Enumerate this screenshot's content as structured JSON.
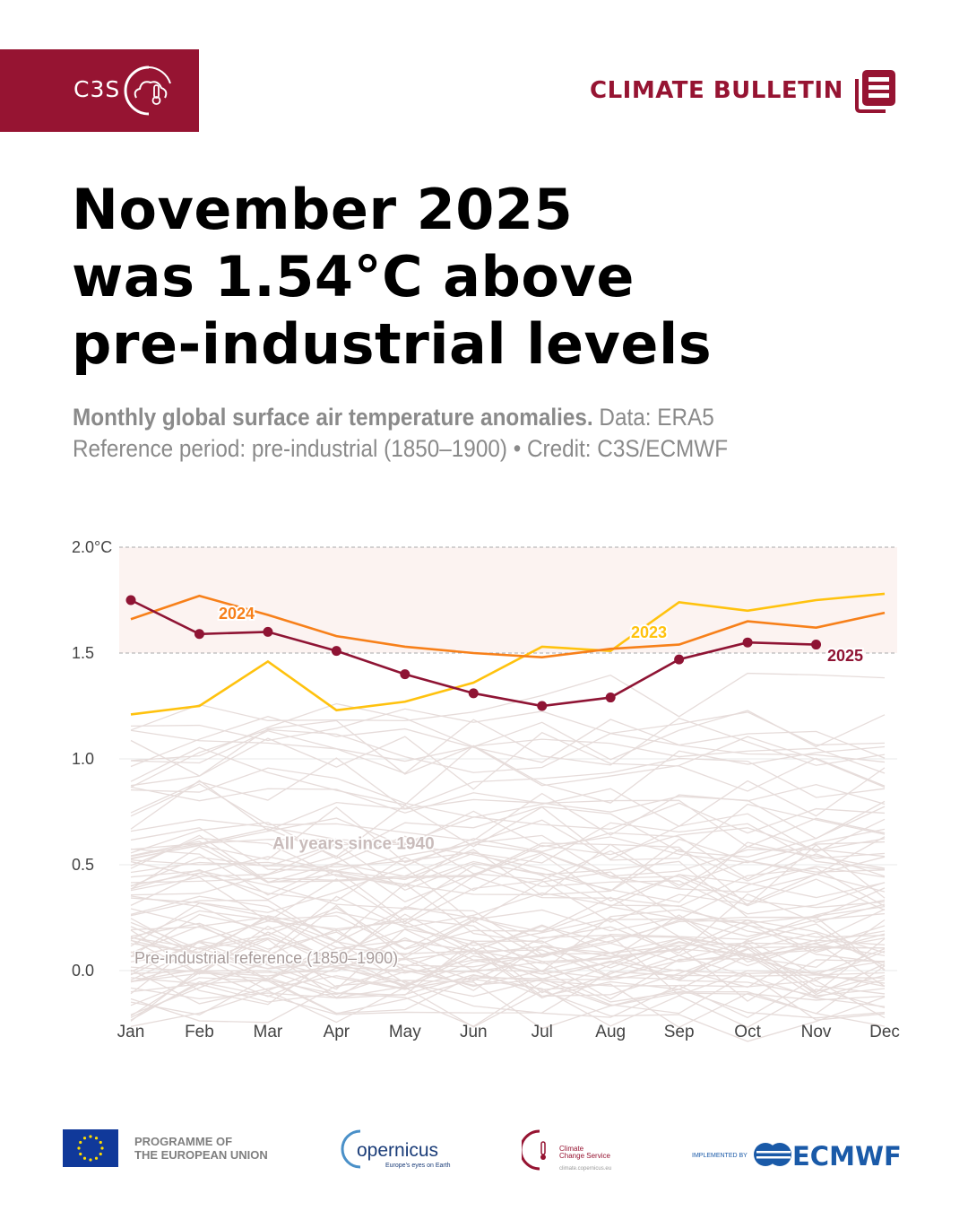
{
  "header": {
    "brand": "C3S",
    "bulletin_label": "CLIMATE BULLETIN",
    "colors": {
      "brand": "#961432"
    }
  },
  "title": {
    "line1": "November 2025",
    "line2": "was 1.54°C above",
    "line3": "pre-industrial levels"
  },
  "subtitle": {
    "bold": "Monthly global surface air temperature anomalies.",
    "data_source": " Data: ERA5",
    "line2": "Reference period: pre-industrial (1850–1900) • Credit: C3S/ECMWF"
  },
  "chart_data": {
    "type": "line",
    "categories": [
      "Jan",
      "Feb",
      "Mar",
      "Apr",
      "May",
      "Jun",
      "Jul",
      "Aug",
      "Sep",
      "Oct",
      "Nov",
      "Dec"
    ],
    "ylim": [
      -0.2,
      2.0
    ],
    "yticks": [
      {
        "value": 2.0,
        "label": "2.0°C"
      },
      {
        "value": 1.5,
        "label": "1.5"
      },
      {
        "value": 1.0,
        "label": "1.0"
      },
      {
        "value": 0.5,
        "label": "0.5"
      },
      {
        "value": 0.0,
        "label": "0.0"
      }
    ],
    "shaded_band": [
      1.5,
      2.0
    ],
    "background_label": "All years since 1940",
    "reference_label": "Pre-industrial reference (1850–1900)",
    "grid": true,
    "series": [
      {
        "name": "2023",
        "color": "#ffc20e",
        "markers": false,
        "values": [
          1.21,
          1.25,
          1.46,
          1.23,
          1.27,
          1.36,
          1.53,
          1.51,
          1.74,
          1.7,
          1.75,
          1.78
        ]
      },
      {
        "name": "2024",
        "color": "#f7801a",
        "markers": false,
        "values": [
          1.66,
          1.77,
          1.68,
          1.58,
          1.53,
          1.5,
          1.48,
          1.52,
          1.54,
          1.65,
          1.62,
          1.69
        ]
      },
      {
        "name": "2025",
        "color": "#8f1434",
        "markers": true,
        "values": [
          1.75,
          1.59,
          1.6,
          1.51,
          1.4,
          1.31,
          1.25,
          1.29,
          1.47,
          1.55,
          1.54,
          null
        ]
      }
    ],
    "background_series_color": "#e6dcda"
  },
  "footer": {
    "eu_text_1": "PROGRAMME OF",
    "eu_text_2": "THE EUROPEAN UNION",
    "copernicus": "opernicus",
    "copernicus_tagline": "Europe's eyes on Earth",
    "ccs_1": "Climate",
    "ccs_2": "Change Service",
    "ccs_url": "climate.copernicus.eu",
    "implemented_by": "IMPLEMENTED BY",
    "ecmwf": "ECMWF"
  }
}
